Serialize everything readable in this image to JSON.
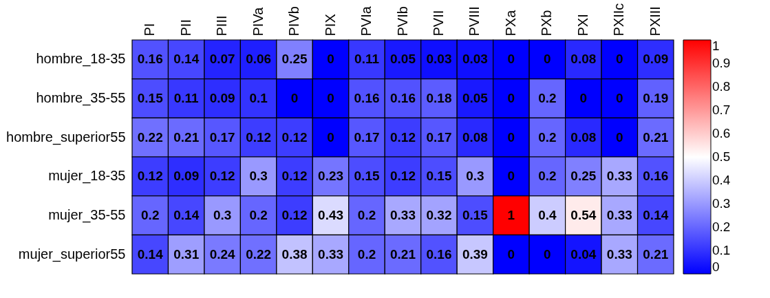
{
  "chart_data": {
    "type": "heatmap",
    "categories": [
      "PI",
      "PII",
      "PIII",
      "PIVa",
      "PIVb",
      "PIX",
      "PVIa",
      "PVIb",
      "PVII",
      "PVIII",
      "PXa",
      "PXb",
      "PXI",
      "PXIIc",
      "PXIII"
    ],
    "y_categories": [
      "hombre_18-35",
      "hombre_35-55",
      "hombre_superior55",
      "mujer_18-35",
      "mujer_35-55",
      "mujer_superior55"
    ],
    "cells": [
      [
        0.16,
        0.14,
        0.07,
        0.06,
        0.25,
        0,
        0.11,
        0.05,
        0.03,
        0.03,
        0,
        0,
        0.08,
        0,
        0.09
      ],
      [
        0.15,
        0.11,
        0.09,
        0.1,
        0,
        0,
        0.16,
        0.16,
        0.18,
        0.05,
        0,
        0.2,
        0,
        0,
        0.19
      ],
      [
        0.22,
        0.21,
        0.17,
        0.12,
        0.12,
        0,
        0.17,
        0.12,
        0.17,
        0.08,
        0,
        0.2,
        0.08,
        0,
        0.21
      ],
      [
        0.12,
        0.09,
        0.12,
        0.3,
        0.12,
        0.23,
        0.15,
        0.12,
        0.15,
        0.3,
        0,
        0.2,
        0.25,
        0.33,
        0.16
      ],
      [
        0.2,
        0.14,
        0.3,
        0.2,
        0.12,
        0.43,
        0.2,
        0.33,
        0.32,
        0.15,
        1,
        0.4,
        0.54,
        0.33,
        0.14
      ],
      [
        0.14,
        0.31,
        0.24,
        0.22,
        0.38,
        0.33,
        0.2,
        0.21,
        0.16,
        0.39,
        0,
        0,
        0.04,
        0.33,
        0.21
      ]
    ],
    "clim": [
      0,
      1
    ],
    "cticks": [
      0,
      0.1,
      0.2,
      0.3,
      0.4,
      0.5,
      0.6,
      0.7,
      0.8,
      0.9,
      1
    ],
    "data_labels": true
  }
}
